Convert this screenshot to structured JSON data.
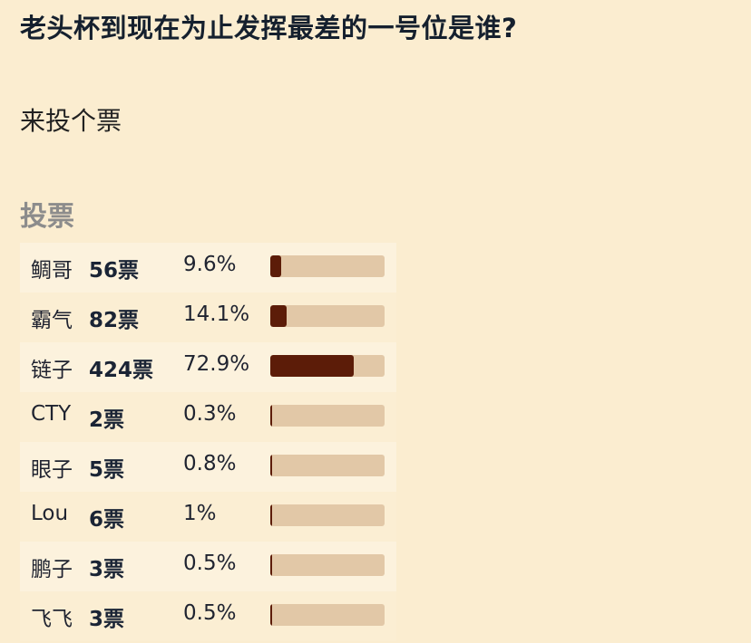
{
  "header": {
    "title": "老头杯到现在为止发挥最差的一号位是谁?",
    "description": "来投个票"
  },
  "poll": {
    "heading": "投票",
    "accent_color": "#5c1c08",
    "track_color": "#e2c8a7",
    "options": [
      {
        "name": "鲷哥",
        "votes": "56票",
        "percent": "9.6%",
        "fraction": 0.096
      },
      {
        "name": "霸气",
        "votes": "82票",
        "percent": "14.1%",
        "fraction": 0.141
      },
      {
        "name": "链子",
        "votes": "424票",
        "percent": "72.9%",
        "fraction": 0.729
      },
      {
        "name": "CTY",
        "votes": "2票",
        "percent": "0.3%",
        "fraction": 0.003
      },
      {
        "name": "眼子",
        "votes": "5票",
        "percent": "0.8%",
        "fraction": 0.008
      },
      {
        "name": "Lou",
        "votes": "6票",
        "percent": "1%",
        "fraction": 0.01
      },
      {
        "name": "鹏子",
        "votes": "3票",
        "percent": "0.5%",
        "fraction": 0.005
      },
      {
        "name": "飞飞",
        "votes": "3票",
        "percent": "0.5%",
        "fraction": 0.005
      }
    ]
  }
}
